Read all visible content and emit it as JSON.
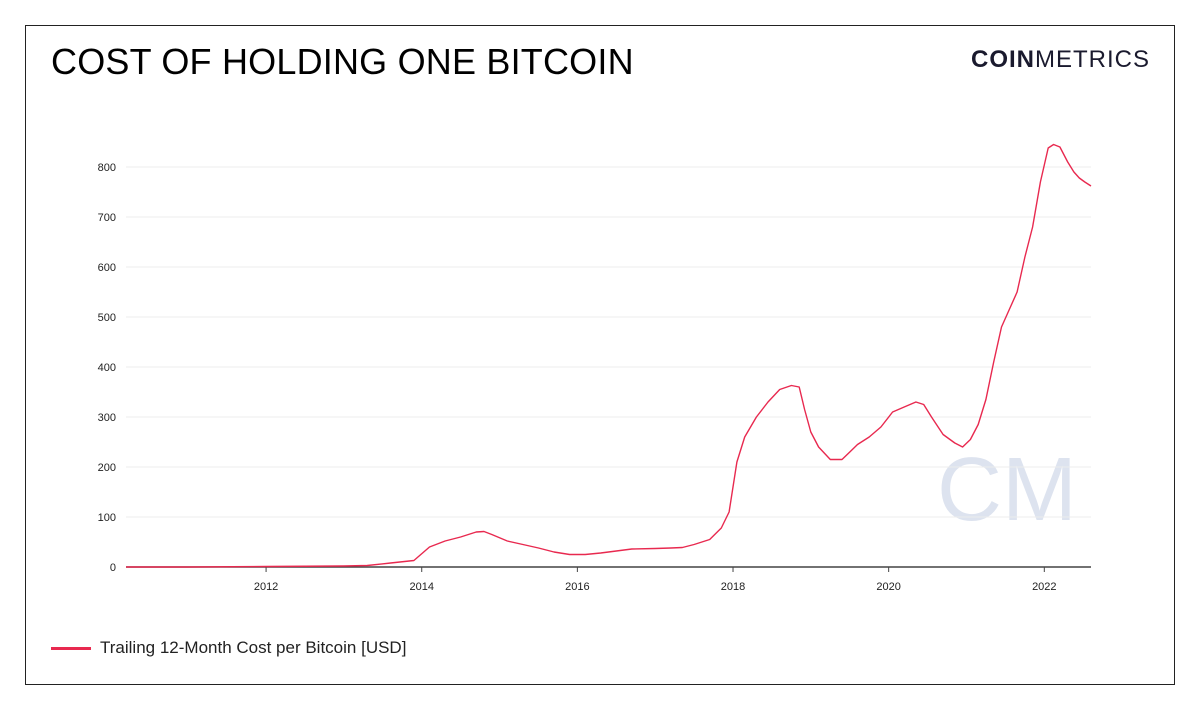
{
  "title": "COST OF HOLDING ONE BITCOIN",
  "logo": {
    "bold": "COIN",
    "light": "METRICS"
  },
  "watermark": "CM",
  "colors": {
    "series": "#e8294f",
    "grid": "#ececec",
    "axis": "#444444",
    "watermark": "#dde3ef"
  },
  "legend": {
    "label": "Trailing 12-Month Cost per Bitcoin [USD]"
  },
  "chart_data": {
    "type": "line",
    "title": "COST OF HOLDING ONE BITCOIN",
    "xlabel": "",
    "ylabel": "",
    "xlim": [
      2010.2,
      2022.6
    ],
    "ylim": [
      0,
      850
    ],
    "x_ticks": [
      2012,
      2014,
      2016,
      2018,
      2020,
      2022
    ],
    "y_ticks": [
      0,
      100,
      200,
      300,
      400,
      500,
      600,
      700,
      800
    ],
    "grid": true,
    "legend_position": "bottom-left",
    "series": [
      {
        "name": "Trailing 12-Month Cost per Bitcoin [USD]",
        "x": [
          2010.2,
          2011.0,
          2012.0,
          2013.0,
          2013.3,
          2013.6,
          2013.9,
          2014.1,
          2014.3,
          2014.5,
          2014.7,
          2014.8,
          2014.9,
          2015.1,
          2015.3,
          2015.5,
          2015.7,
          2015.9,
          2016.1,
          2016.3,
          2016.5,
          2016.7,
          2017.0,
          2017.2,
          2017.35,
          2017.5,
          2017.7,
          2017.85,
          2017.95,
          2018.05,
          2018.15,
          2018.3,
          2018.45,
          2018.6,
          2018.75,
          2018.85,
          2018.92,
          2019.0,
          2019.1,
          2019.25,
          2019.4,
          2019.5,
          2019.6,
          2019.75,
          2019.9,
          2020.05,
          2020.2,
          2020.35,
          2020.45,
          2020.55,
          2020.7,
          2020.85,
          2020.95,
          2021.05,
          2021.15,
          2021.25,
          2021.35,
          2021.45,
          2021.55,
          2021.65,
          2021.75,
          2021.85,
          2021.95,
          2022.05,
          2022.12,
          2022.2,
          2022.3,
          2022.38,
          2022.45,
          2022.52,
          2022.6
        ],
        "values": [
          0,
          0,
          1,
          2,
          3,
          8,
          13,
          40,
          52,
          60,
          70,
          71,
          65,
          52,
          45,
          38,
          30,
          25,
          25,
          28,
          32,
          36,
          37,
          38,
          39,
          45,
          55,
          78,
          110,
          210,
          260,
          300,
          330,
          355,
          363,
          360,
          315,
          270,
          240,
          215,
          215,
          230,
          245,
          260,
          280,
          310,
          320,
          330,
          325,
          300,
          265,
          248,
          240,
          255,
          285,
          335,
          410,
          480,
          515,
          550,
          620,
          680,
          770,
          838,
          845,
          840,
          810,
          790,
          778,
          770,
          762
        ]
      }
    ]
  }
}
